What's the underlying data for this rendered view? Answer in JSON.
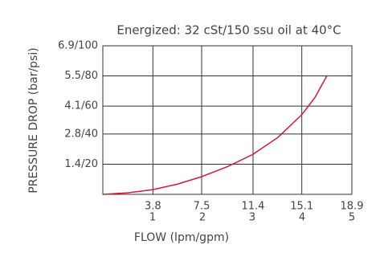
{
  "chart_data": {
    "type": "line",
    "title": "Energized: 32 cSt/150 ssu oil at 40°C",
    "x_label": "FLOW (lpm/gpm)",
    "y_label": "PRESSURE DROP (bar/psi)",
    "x": [
      0,
      1.9,
      3.8,
      5.7,
      7.5,
      9.5,
      11.4,
      13.3,
      15.1,
      16.1,
      17.0
    ],
    "values": [
      0,
      0.07,
      0.22,
      0.48,
      0.82,
      1.3,
      1.86,
      2.65,
      3.7,
      4.5,
      5.5
    ],
    "color": "#d3173f",
    "xlim": [
      0,
      18.9
    ],
    "xticks": [
      3.8,
      7.5,
      11.4,
      15.1,
      18.9
    ],
    "x2lim": [
      0,
      5
    ],
    "x2ticks": [
      1,
      2,
      3,
      4,
      5
    ],
    "ylim": [
      0,
      6.9
    ],
    "yticks": [
      {
        "value": 1.4,
        "label": "1.4/20"
      },
      {
        "value": 2.8,
        "label": "2.8/40"
      },
      {
        "value": 4.1,
        "label": "4.1/60"
      },
      {
        "value": 5.5,
        "label": "5.5/80"
      },
      {
        "value": 6.9,
        "label": "6.9/100"
      }
    ],
    "grid": true
  }
}
